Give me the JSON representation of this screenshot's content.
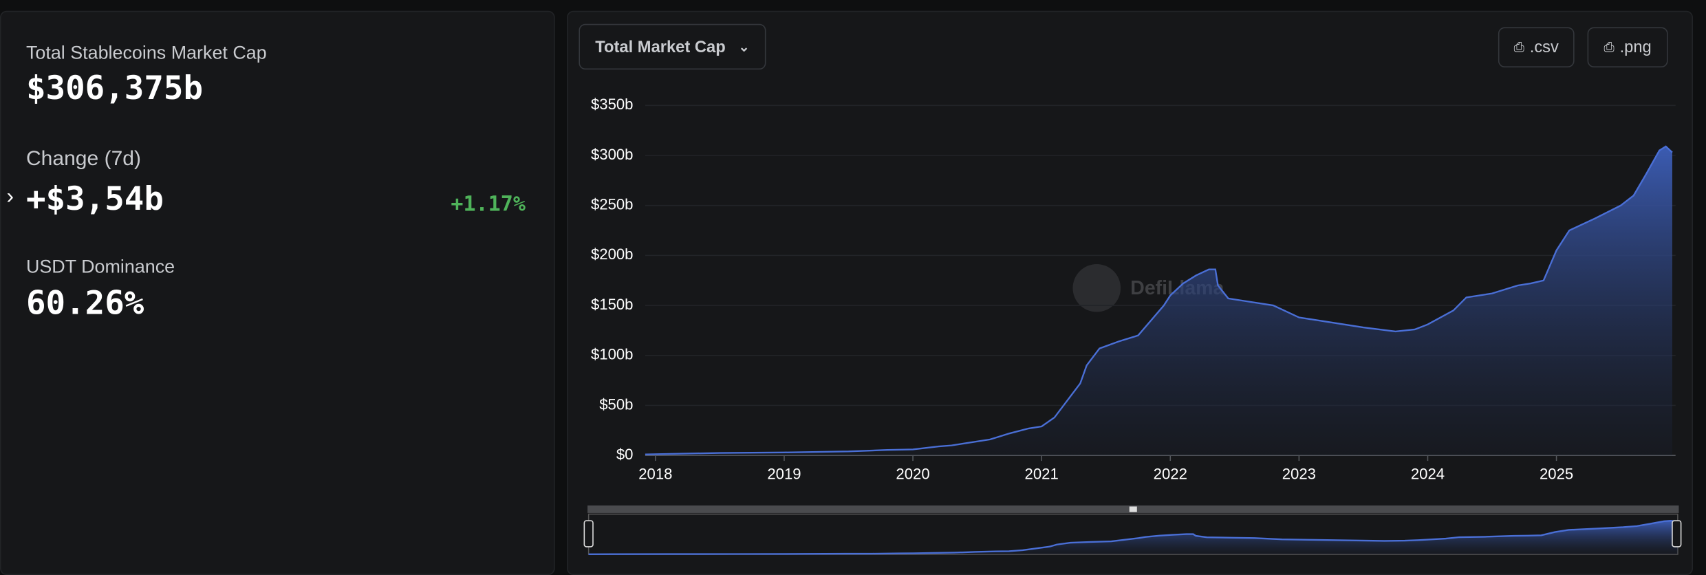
{
  "stats": [
    {
      "label": "Total Stablecoins Market Cap",
      "value": "$306,375b"
    },
    {
      "label": "Change (7d)",
      "value": "+$3,54b",
      "change": "+1.17%"
    },
    {
      "label": "USDT Dominance",
      "value": "60.26%"
    }
  ],
  "controls": {
    "dropdown": "Total Market Cap",
    "csv": ".csv",
    "png": ".png"
  },
  "watermark": "DefiLlama",
  "chart_data": {
    "type": "area",
    "color": "#4a6fd6",
    "x": [
      2017.92,
      2018.5,
      2019.0,
      2019.5,
      2019.8,
      2020.0,
      2020.2,
      2020.3,
      2020.4,
      2020.6,
      2020.75,
      2020.9,
      2021.0,
      2021.1,
      2021.2,
      2021.3,
      2021.35,
      2021.45,
      2021.6,
      2021.75,
      2021.85,
      2021.95,
      2022.0,
      2022.1,
      2022.2,
      2022.3,
      2022.35,
      2022.37,
      2022.45,
      2022.6,
      2022.8,
      2023.0,
      2023.2,
      2023.5,
      2023.75,
      2023.9,
      2024.0,
      2024.2,
      2024.3,
      2024.5,
      2024.7,
      2024.8,
      2024.9,
      2025.0,
      2025.1,
      2025.3,
      2025.5,
      2025.6,
      2025.7,
      2025.8,
      2025.85,
      2025.9
    ],
    "values": [
      1,
      2.5,
      3,
      4,
      5.5,
      6,
      9,
      10,
      12,
      16,
      22,
      27,
      29,
      38,
      55,
      72,
      90,
      107,
      114,
      120,
      135,
      150,
      160,
      172,
      180,
      186,
      186,
      170,
      157,
      154,
      150,
      138,
      134,
      128,
      124,
      126,
      131,
      145,
      158,
      162,
      170,
      172,
      175,
      205,
      225,
      237,
      250,
      260,
      282,
      305,
      309,
      303
    ],
    "xlim": [
      2017.92,
      2025.9
    ],
    "xticks": [
      2018,
      2019,
      2020,
      2021,
      2022,
      2023,
      2024,
      2025
    ],
    "ylim": [
      0,
      350
    ],
    "yticks": [
      {
        "value": 0,
        "label": "$0"
      },
      {
        "value": 50,
        "label": "$50b"
      },
      {
        "value": 100,
        "label": "$100b"
      },
      {
        "value": 150,
        "label": "$150b"
      },
      {
        "value": 200,
        "label": "$200b"
      },
      {
        "value": 250,
        "label": "$250b"
      },
      {
        "value": 300,
        "label": "$300b"
      },
      {
        "value": 350,
        "label": "$350b"
      }
    ],
    "grid": true
  }
}
